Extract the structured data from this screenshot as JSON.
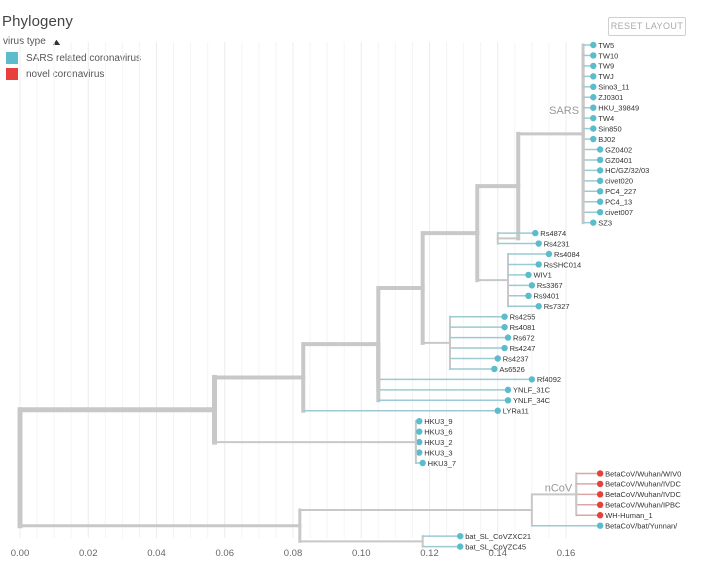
{
  "title": "Phylogeny",
  "reset_label": "RESET LAYOUT",
  "legend": {
    "toggle_label": "virus type",
    "toggle_icon": "chevron-up-icon",
    "items": [
      {
        "label": "SARS related coronavirus",
        "color": "#5bbccc"
      },
      {
        "label": "novel coronavirus",
        "color": "#e8403a"
      }
    ]
  },
  "axis": {
    "min": 0,
    "max": 0.17,
    "ticks": [
      "0.00",
      "0.02",
      "0.04",
      "0.06",
      "0.08",
      "0.10",
      "0.12",
      "0.14",
      "0.16"
    ]
  },
  "clade_labels": [
    "SARS",
    "nCoV"
  ],
  "colors": {
    "branch_default": "#c8c8c8",
    "sars_branch": "#7fbccc",
    "sars_tip": "#5bbccc",
    "ncov_tip": "#e8403a"
  },
  "tree": {
    "root": {
      "div": 0.0,
      "children": [
        {
          "div": 0.057,
          "children": [
            {
              "div": 0.083,
              "children": [
                {
                  "div": 0.105,
                  "children": [
                    {
                      "div": 0.118,
                      "children": [
                        {
                          "div": 0.134,
                          "children": [
                            {
                              "div": 0.146,
                              "children": [
                                {
                                  "div": 0.165,
                                  "label_clade": "SARS",
                                  "children": [
                                    {
                                      "name": "TW5",
                                      "div": 0.168,
                                      "type": "sars"
                                    },
                                    {
                                      "name": "TW10",
                                      "div": 0.168,
                                      "type": "sars"
                                    },
                                    {
                                      "name": "TW9",
                                      "div": 0.168,
                                      "type": "sars"
                                    },
                                    {
                                      "name": "TWJ",
                                      "div": 0.168,
                                      "type": "sars"
                                    },
                                    {
                                      "name": "Sino3_11",
                                      "div": 0.168,
                                      "type": "sars"
                                    },
                                    {
                                      "name": "ZJ0301",
                                      "div": 0.168,
                                      "type": "sars"
                                    },
                                    {
                                      "name": "HKU_39849",
                                      "div": 0.168,
                                      "type": "sars"
                                    },
                                    {
                                      "name": "TW4",
                                      "div": 0.168,
                                      "type": "sars"
                                    },
                                    {
                                      "name": "Sin850",
                                      "div": 0.168,
                                      "type": "sars"
                                    },
                                    {
                                      "name": "BJ02",
                                      "div": 0.168,
                                      "type": "sars"
                                    },
                                    {
                                      "name": "GZ0402",
                                      "div": 0.17,
                                      "type": "sars"
                                    },
                                    {
                                      "name": "GZ0401",
                                      "div": 0.17,
                                      "type": "sars"
                                    },
                                    {
                                      "name": "HC/GZ/32/03",
                                      "div": 0.17,
                                      "type": "sars"
                                    },
                                    {
                                      "name": "civet020",
                                      "div": 0.17,
                                      "type": "sars"
                                    },
                                    {
                                      "name": "PC4_227",
                                      "div": 0.17,
                                      "type": "sars"
                                    },
                                    {
                                      "name": "PC4_13",
                                      "div": 0.17,
                                      "type": "sars"
                                    },
                                    {
                                      "name": "civet007",
                                      "div": 0.17,
                                      "type": "sars"
                                    },
                                    {
                                      "name": "SZ3",
                                      "div": 0.168,
                                      "type": "sars"
                                    }
                                  ]
                                },
                                {
                                  "div": 0.14,
                                  "children": [
                                    {
                                      "name": "Rs4874",
                                      "div": 0.151,
                                      "type": "sars"
                                    },
                                    {
                                      "name": "Rs4231",
                                      "div": 0.152,
                                      "type": "sars"
                                    }
                                  ]
                                }
                              ]
                            },
                            {
                              "div": 0.143,
                              "children": [
                                {
                                  "name": "Rs4084",
                                  "div": 0.155,
                                  "type": "sars"
                                },
                                {
                                  "name": "RsSHC014",
                                  "div": 0.152,
                                  "type": "sars"
                                },
                                {
                                  "name": "WIV1",
                                  "div": 0.149,
                                  "type": "sars"
                                },
                                {
                                  "name": "Rs3367",
                                  "div": 0.15,
                                  "type": "sars"
                                },
                                {
                                  "name": "Rs9401",
                                  "div": 0.149,
                                  "type": "sars"
                                },
                                {
                                  "name": "Rs7327",
                                  "div": 0.152,
                                  "type": "sars"
                                }
                              ]
                            }
                          ]
                        },
                        {
                          "div": 0.126,
                          "children": [
                            {
                              "name": "Rs4255",
                              "div": 0.142,
                              "type": "sars"
                            },
                            {
                              "name": "Rs4081",
                              "div": 0.142,
                              "type": "sars"
                            },
                            {
                              "name": "Rs672",
                              "div": 0.143,
                              "type": "sars"
                            },
                            {
                              "name": "Rs4247",
                              "div": 0.142,
                              "type": "sars"
                            },
                            {
                              "name": "Rs4237",
                              "div": 0.14,
                              "type": "sars"
                            },
                            {
                              "name": "As6526",
                              "div": 0.139,
                              "type": "sars"
                            }
                          ]
                        }
                      ]
                    },
                    {
                      "name": "Rf4092",
                      "div": 0.15,
                      "type": "sars"
                    },
                    {
                      "name": "YNLF_31C",
                      "div": 0.143,
                      "type": "sars"
                    },
                    {
                      "name": "YNLF_34C",
                      "div": 0.143,
                      "type": "sars"
                    }
                  ]
                },
                {
                  "name": "LYRa11",
                  "div": 0.14,
                  "type": "sars"
                }
              ]
            },
            {
              "div": 0.116,
              "children": [
                {
                  "name": "HKU3_9",
                  "div": 0.117,
                  "type": "sars"
                },
                {
                  "name": "HKU3_6",
                  "div": 0.117,
                  "type": "sars"
                },
                {
                  "name": "HKU3_2",
                  "div": 0.117,
                  "type": "sars"
                },
                {
                  "name": "HKU3_3",
                  "div": 0.117,
                  "type": "sars"
                },
                {
                  "name": "HKU3_7",
                  "div": 0.118,
                  "type": "sars"
                }
              ]
            }
          ]
        },
        {
          "div": 0.082,
          "children": [
            {
              "div": 0.15,
              "children": [
                {
                  "div": 0.163,
                  "label_clade": "nCoV",
                  "children": [
                    {
                      "name": "BetaCoV/Wuhan/WIV0",
                      "div": 0.17,
                      "type": "ncov"
                    },
                    {
                      "name": "BetaCoV/Wuhan/IVDC",
                      "div": 0.17,
                      "type": "ncov"
                    },
                    {
                      "name": "BetaCoV/Wuhan/IVDC",
                      "div": 0.17,
                      "type": "ncov"
                    },
                    {
                      "name": "BetaCoV/Wuhan/IPBC",
                      "div": 0.17,
                      "type": "ncov"
                    },
                    {
                      "name": "WH-Human_1",
                      "div": 0.17,
                      "type": "ncov"
                    }
                  ]
                },
                {
                  "name": "BetaCoV/bat/Yunnan/",
                  "div": 0.17,
                  "type": "sars"
                }
              ]
            },
            {
              "div": 0.118,
              "children": [
                {
                  "name": "bat_SL_CoVZXC21",
                  "div": 0.129,
                  "type": "sars"
                },
                {
                  "name": "bat_SL_CoVZC45",
                  "div": 0.129,
                  "type": "sars"
                }
              ]
            }
          ]
        }
      ]
    }
  }
}
